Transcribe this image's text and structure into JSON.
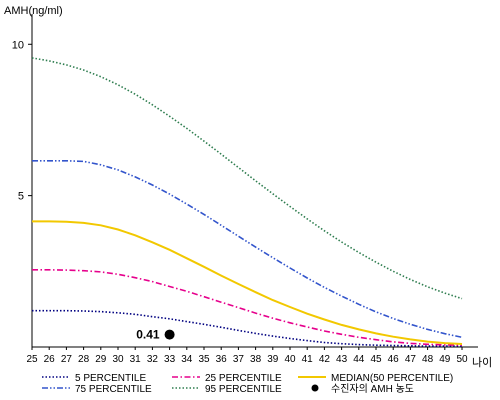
{
  "chart_data": {
    "type": "line",
    "ylabel": "AMH(ng/ml)",
    "xlabel": "나이",
    "xlim": [
      25,
      50
    ],
    "ylim": [
      0,
      11
    ],
    "yticks": [
      5,
      10
    ],
    "x_ticks": [
      25,
      26,
      27,
      28,
      29,
      30,
      31,
      32,
      33,
      34,
      35,
      36,
      37,
      38,
      39,
      40,
      41,
      42,
      43,
      44,
      45,
      46,
      47,
      48,
      49,
      50
    ],
    "grid": false,
    "legend_position": "bottom",
    "x": [
      25,
      26,
      27,
      28,
      29,
      30,
      31,
      32,
      33,
      34,
      35,
      36,
      37,
      38,
      39,
      40,
      41,
      42,
      43,
      44,
      45,
      46,
      47,
      48,
      49,
      50
    ],
    "series": [
      {
        "name": "5 PERCENTILE",
        "color": "#000080",
        "dash": "dotted",
        "values": [
          1.2,
          1.2,
          1.2,
          1.19,
          1.17,
          1.13,
          1.08,
          1.0,
          0.93,
          0.84,
          0.75,
          0.65,
          0.55,
          0.45,
          0.36,
          0.28,
          0.21,
          0.15,
          0.11,
          0.08,
          0.06,
          0.05,
          0.04,
          0.03,
          0.03,
          0.03
        ]
      },
      {
        "name": "25 PERCENTILE",
        "color": "#e6008c",
        "dash": "dashdot",
        "values": [
          2.55,
          2.55,
          2.54,
          2.52,
          2.48,
          2.4,
          2.29,
          2.16,
          2.0,
          1.84,
          1.66,
          1.48,
          1.3,
          1.12,
          0.95,
          0.8,
          0.66,
          0.53,
          0.42,
          0.32,
          0.24,
          0.17,
          0.12,
          0.09,
          0.07,
          0.06
        ]
      },
      {
        "name": "MEDIAN(50 PERCENTILE)",
        "color": "#f2c800",
        "dash": "solid",
        "values": [
          4.15,
          4.15,
          4.14,
          4.1,
          4.02,
          3.88,
          3.69,
          3.46,
          3.21,
          2.93,
          2.65,
          2.36,
          2.08,
          1.81,
          1.55,
          1.32,
          1.1,
          0.91,
          0.73,
          0.58,
          0.45,
          0.34,
          0.25,
          0.18,
          0.13,
          0.1
        ]
      },
      {
        "name": "75 PERCENTILE",
        "color": "#3355cc",
        "dash": "dashdotdot",
        "values": [
          6.15,
          6.15,
          6.15,
          6.13,
          6.02,
          5.85,
          5.62,
          5.35,
          5.05,
          4.72,
          4.38,
          4.02,
          3.66,
          3.3,
          2.95,
          2.61,
          2.28,
          1.97,
          1.68,
          1.41,
          1.16,
          0.94,
          0.75,
          0.58,
          0.44,
          0.32
        ]
      },
      {
        "name": "95 PERCENTILE",
        "color": "#2e7d4f",
        "dash": "dotted",
        "values": [
          9.55,
          9.45,
          9.32,
          9.15,
          8.93,
          8.66,
          8.35,
          8.0,
          7.62,
          7.22,
          6.8,
          6.37,
          5.93,
          5.49,
          5.06,
          4.64,
          4.23,
          3.84,
          3.47,
          3.12,
          2.8,
          2.5,
          2.23,
          1.99,
          1.78,
          1.6
        ]
      }
    ],
    "marker": {
      "label": "0.41",
      "x": 33,
      "y": 0.41,
      "legend_name": "수진자의 AMH 농도"
    }
  }
}
